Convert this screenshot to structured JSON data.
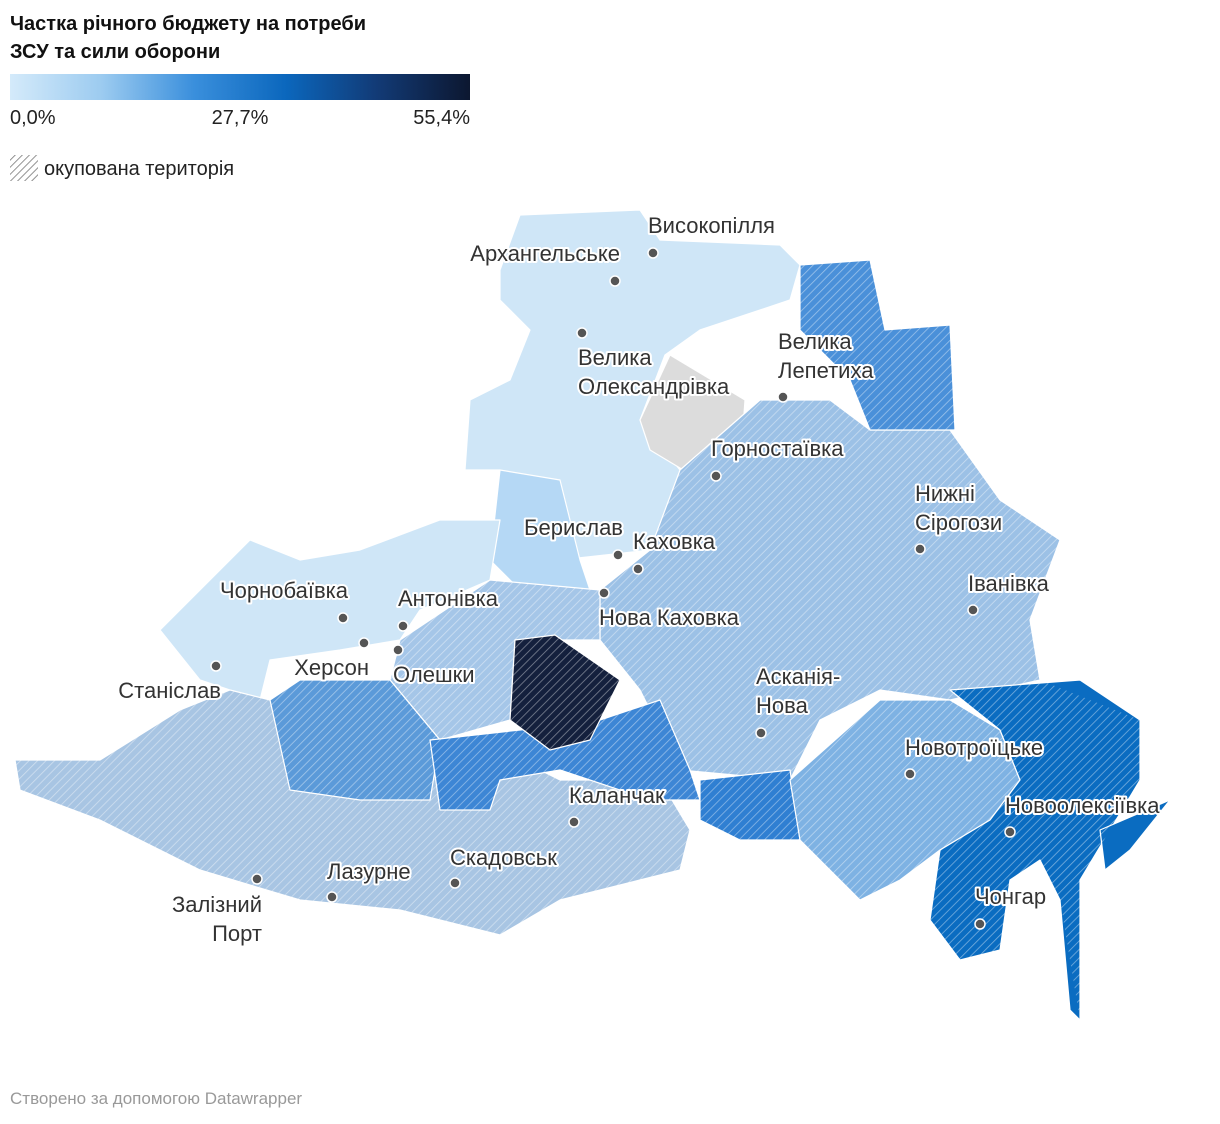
{
  "title": [
    "Частка річного бюджету на потреби",
    "ЗСУ та сили оборони"
  ],
  "legend": {
    "range": [
      0,
      55.4
    ],
    "ticks": [
      {
        "value": 0,
        "label": "0,0%"
      },
      {
        "value": 27.7,
        "label": "27,7%"
      },
      {
        "value": 55.4,
        "label": "55,4%"
      }
    ],
    "colors": [
      "#d4eafa",
      "#9ccbf0",
      "#3a8fdc",
      "#0b67bd",
      "#123a75",
      "#0c1730"
    ],
    "occupied_label": "окупована територія"
  },
  "places": [
    {
      "name": [
        "Високопілля"
      ]
    },
    {
      "name": [
        "Архангельське"
      ]
    },
    {
      "name": [
        "Велика",
        "Олександрівка"
      ]
    },
    {
      "name": [
        "Велика",
        "Лепетиха"
      ]
    },
    {
      "name": [
        "Горностаївка"
      ]
    },
    {
      "name": [
        "Нижні",
        "Сірогози"
      ]
    },
    {
      "name": [
        "Іванівка"
      ]
    },
    {
      "name": [
        "Берислав"
      ]
    },
    {
      "name": [
        "Каховка"
      ]
    },
    {
      "name": [
        "Нова Каховка"
      ]
    },
    {
      "name": [
        "Антонівка"
      ]
    },
    {
      "name": [
        "Чорнобаївка"
      ]
    },
    {
      "name": [
        "Херсон"
      ]
    },
    {
      "name": [
        "Олешки"
      ]
    },
    {
      "name": [
        "Станіслав"
      ]
    },
    {
      "name": [
        "Асканія-",
        "Нова"
      ]
    },
    {
      "name": [
        "Новотроїцьке"
      ]
    },
    {
      "name": [
        "Новоолексіївка"
      ]
    },
    {
      "name": [
        "Чонгар"
      ]
    },
    {
      "name": [
        "Каланчак"
      ]
    },
    {
      "name": [
        "Скадовськ"
      ]
    },
    {
      "name": [
        "Лазурне"
      ]
    },
    {
      "name": [
        "Залізний",
        "Порт"
      ]
    }
  ],
  "footer": "Створено за допомогою Datawrapper"
}
